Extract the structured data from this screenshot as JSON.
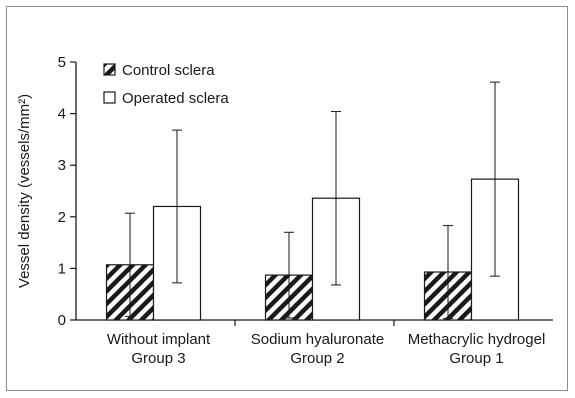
{
  "chart_data": {
    "type": "bar",
    "ylabel": "Vessel density (vessels/mm²)",
    "ylim": [
      0,
      5
    ],
    "yticks": [
      "0",
      "1",
      "2",
      "3",
      "4",
      "5"
    ],
    "categories": [
      [
        "Without implant",
        "Group 3"
      ],
      [
        "Sodium hyaluronate",
        "Group 2"
      ],
      [
        "Methacrylic hydrogel",
        "Group 1"
      ]
    ],
    "series": [
      {
        "name": "Control sclera",
        "fill": "hatched",
        "values": [
          1.07,
          0.87,
          0.93
        ],
        "error": [
          1.0,
          0.83,
          0.9
        ]
      },
      {
        "name": "Operated sclera",
        "fill": "open",
        "values": [
          2.2,
          2.36,
          2.73
        ],
        "error": [
          1.48,
          1.68,
          1.88
        ]
      }
    ],
    "legend": "top-left",
    "grid": false
  },
  "colors": {
    "stroke": "#1a1a1a",
    "frame": "#8c8c8c",
    "background": "#ffffff"
  }
}
